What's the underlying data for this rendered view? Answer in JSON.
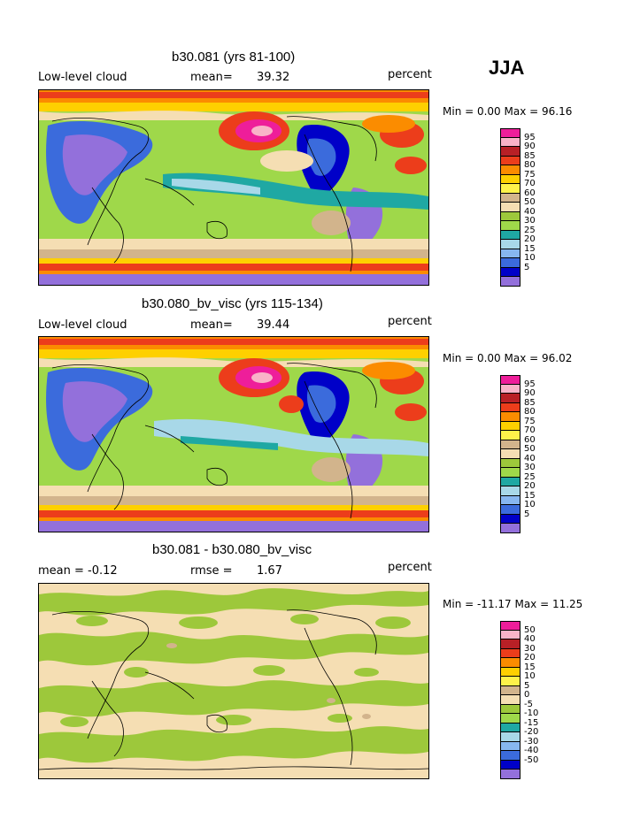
{
  "season": "JJA",
  "chart_data": [
    {
      "type": "heatmap",
      "title": "b30.081 (yrs 81-100)",
      "variable": "Low-level cloud",
      "stat_label": "mean=",
      "stat_value": "39.32",
      "units": "percent",
      "minmax_text": "Min =    0.00 Max =   96.16",
      "legend_levels": [
        "95",
        "90",
        "85",
        "80",
        "75",
        "70",
        "60",
        "50",
        "40",
        "30",
        "25",
        "20",
        "15",
        "10",
        "5"
      ],
      "colors": [
        "#ee1e9a",
        "#f9b3c8",
        "#b82026",
        "#ec3d1b",
        "#fb8c00",
        "#fed000",
        "#fef24a",
        "#d2b48c",
        "#f5deb3",
        "#9dc83b",
        "#9fd84a",
        "#1fa8a3",
        "#a8d8e8",
        "#87b7f0",
        "#3b6bdc",
        "#0000c8",
        "#9370db"
      ]
    },
    {
      "type": "heatmap",
      "title": "b30.080_bv_visc (yrs 115-134)",
      "variable": "Low-level cloud",
      "stat_label": "mean=",
      "stat_value": "39.44",
      "units": "percent",
      "minmax_text": "Min =    0.00 Max =   96.02",
      "legend_levels": [
        "95",
        "90",
        "85",
        "80",
        "75",
        "70",
        "60",
        "50",
        "40",
        "30",
        "25",
        "20",
        "15",
        "10",
        "5"
      ],
      "colors": [
        "#ee1e9a",
        "#f9b3c8",
        "#b82026",
        "#ec3d1b",
        "#fb8c00",
        "#fed000",
        "#fef24a",
        "#d2b48c",
        "#f5deb3",
        "#9dc83b",
        "#9fd84a",
        "#1fa8a3",
        "#a8d8e8",
        "#87b7f0",
        "#3b6bdc",
        "#0000c8",
        "#9370db"
      ]
    },
    {
      "type": "heatmap",
      "title": "b30.081 - b30.080_bv_visc",
      "variable": "mean =   -0.12",
      "stat_label": "rmse =",
      "stat_value": "1.67",
      "units": "percent",
      "minmax_text": "Min = -11.17 Max =   11.25",
      "legend_levels": [
        "50",
        "40",
        "30",
        "20",
        "15",
        "10",
        "5",
        "0",
        "-5",
        "-10",
        "-15",
        "-20",
        "-30",
        "-40",
        "-50"
      ],
      "colors": [
        "#ee1e9a",
        "#f9b3c8",
        "#b82026",
        "#ec3d1b",
        "#fb8c00",
        "#fed000",
        "#fef24a",
        "#d2b48c",
        "#f5deb3",
        "#9dc83b",
        "#9fd84a",
        "#1fa8a3",
        "#a8d8e8",
        "#87b7f0",
        "#3b6bdc",
        "#0000c8",
        "#9370db"
      ]
    }
  ]
}
